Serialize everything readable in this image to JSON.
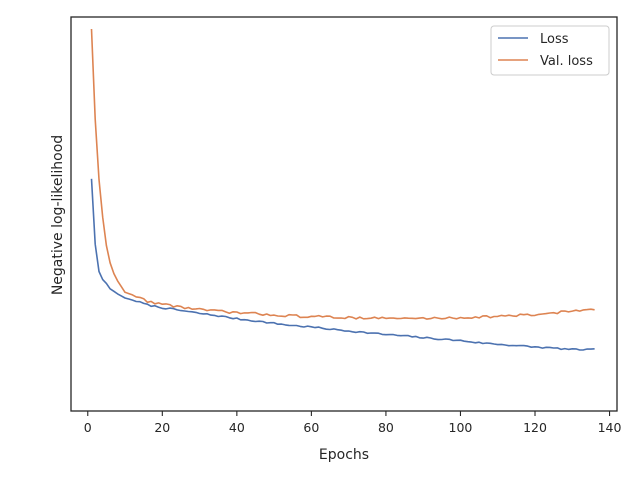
{
  "chart_data": {
    "type": "line",
    "title": "",
    "xlabel": "Epochs",
    "ylabel": "Negative log-likelihood",
    "xlim": [
      -4.5,
      142
    ],
    "xticks": [
      0,
      20,
      40,
      60,
      80,
      100,
      120,
      140
    ],
    "yticks": [],
    "grid": false,
    "legend": {
      "placement": "top-right"
    },
    "series": [
      {
        "name": "Loss",
        "color": "#4c72b0",
        "anchors": [
          [
            1,
            0.5757
          ],
          [
            2,
            0.3903
          ],
          [
            3,
            0.313
          ],
          [
            4,
            0.2901
          ],
          [
            5,
            0.2794
          ],
          [
            6,
            0.2639
          ],
          [
            8,
            0.2497
          ],
          [
            10,
            0.238
          ],
          [
            13,
            0.2292
          ],
          [
            16,
            0.2185
          ],
          [
            20,
            0.2106
          ],
          [
            25,
            0.2025
          ],
          [
            30,
            0.1944
          ],
          [
            35,
            0.1873
          ],
          [
            40,
            0.1792
          ],
          [
            45,
            0.1731
          ],
          [
            50,
            0.166
          ],
          [
            55,
            0.1599
          ],
          [
            60,
            0.1558
          ],
          [
            65,
            0.1497
          ],
          [
            70,
            0.1447
          ],
          [
            75,
            0.1396
          ],
          [
            80,
            0.1345
          ],
          [
            85,
            0.1305
          ],
          [
            90,
            0.1254
          ],
          [
            95,
            0.1213
          ],
          [
            100,
            0.1173
          ],
          [
            105,
            0.1112
          ],
          [
            110,
            0.1071
          ],
          [
            115,
            0.103
          ],
          [
            120,
            0.099
          ],
          [
            125,
            0.0959
          ],
          [
            130,
            0.0919
          ],
          [
            133,
            0.0919
          ],
          [
            136,
            0.0919
          ]
        ],
        "noise": 0.0022
      },
      {
        "name": "Val. loss",
        "color": "#dd8452",
        "anchors": [
          [
            1,
            1.0
          ],
          [
            2,
            0.7444
          ],
          [
            3,
            0.5737
          ],
          [
            4,
            0.4669
          ],
          [
            5,
            0.3865
          ],
          [
            6,
            0.3376
          ],
          [
            7,
            0.3071
          ],
          [
            8,
            0.2864
          ],
          [
            10,
            0.2542
          ],
          [
            13,
            0.2429
          ],
          [
            16,
            0.2288
          ],
          [
            20,
            0.2206
          ],
          [
            25,
            0.2125
          ],
          [
            30,
            0.2054
          ],
          [
            35,
            0.2003
          ],
          [
            40,
            0.1964
          ],
          [
            45,
            0.1932
          ],
          [
            50,
            0.1902
          ],
          [
            55,
            0.1872
          ],
          [
            60,
            0.1852
          ],
          [
            65,
            0.1843
          ],
          [
            70,
            0.1822
          ],
          [
            75,
            0.1821
          ],
          [
            80,
            0.1802
          ],
          [
            85,
            0.1802
          ],
          [
            90,
            0.1802
          ],
          [
            95,
            0.1811
          ],
          [
            100,
            0.1822
          ],
          [
            105,
            0.1842
          ],
          [
            110,
            0.1862
          ],
          [
            115,
            0.1882
          ],
          [
            120,
            0.1903
          ],
          [
            125,
            0.1963
          ],
          [
            130,
            0.2014
          ],
          [
            133,
            0.2034
          ],
          [
            136,
            0.2024
          ]
        ],
        "noise": 0.0035
      }
    ]
  }
}
